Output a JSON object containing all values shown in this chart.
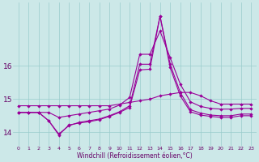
{
  "x": [
    0,
    1,
    2,
    3,
    4,
    5,
    6,
    7,
    8,
    9,
    10,
    11,
    12,
    13,
    14,
    15,
    16,
    17,
    18,
    19,
    20,
    21,
    22,
    23
  ],
  "line1": [
    14.8,
    14.8,
    14.8,
    14.8,
    14.8,
    14.8,
    14.8,
    14.8,
    14.8,
    14.8,
    14.85,
    14.9,
    14.95,
    15.0,
    15.1,
    15.15,
    15.2,
    15.2,
    15.1,
    14.95,
    14.85,
    14.85,
    14.85,
    14.85
  ],
  "line2": [
    14.6,
    14.6,
    14.6,
    14.6,
    14.45,
    14.5,
    14.55,
    14.6,
    14.65,
    14.7,
    14.82,
    15.05,
    16.35,
    16.35,
    17.05,
    16.25,
    15.45,
    14.92,
    14.78,
    14.72,
    14.7,
    14.7,
    14.72,
    14.72
  ],
  "line3": [
    14.6,
    14.6,
    14.6,
    14.35,
    13.95,
    14.2,
    14.3,
    14.35,
    14.4,
    14.5,
    14.62,
    14.8,
    16.05,
    16.05,
    17.5,
    16.05,
    15.2,
    14.68,
    14.58,
    14.52,
    14.5,
    14.5,
    14.55,
    14.55
  ],
  "line4": [
    14.6,
    14.6,
    14.6,
    14.35,
    13.92,
    14.22,
    14.28,
    14.32,
    14.38,
    14.48,
    14.6,
    14.75,
    15.88,
    15.9,
    17.5,
    15.95,
    15.1,
    14.62,
    14.52,
    14.48,
    14.45,
    14.45,
    14.5,
    14.5
  ],
  "line_color": "#990099",
  "bg_color": "#cce8e8",
  "grid_color": "#99cccc",
  "xlabel": "Windchill (Refroidissement éolien,°C)",
  "xlabel_color": "#660066",
  "tick_color": "#660066",
  "yticks": [
    14,
    15,
    16
  ],
  "ylim": [
    13.6,
    17.9
  ],
  "xlim": [
    -0.5,
    23.5
  ]
}
